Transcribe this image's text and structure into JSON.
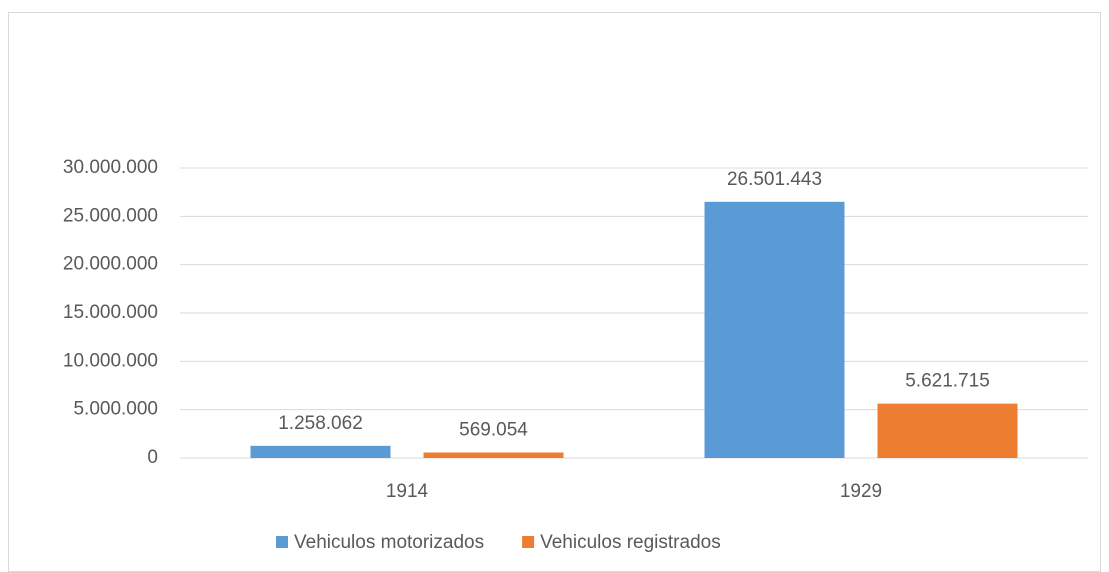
{
  "chart_data": {
    "type": "bar",
    "categories": [
      "1914",
      "1929"
    ],
    "series": [
      {
        "name": "Vehiculos motorizados",
        "color": "#5b9bd5",
        "values": [
          1258062,
          26501443
        ],
        "value_labels": [
          "1.258.062",
          "26.501.443"
        ]
      },
      {
        "name": "Vehiculos registrados",
        "color": "#ed7d31",
        "values": [
          569054,
          5621715
        ],
        "value_labels": [
          "569.054",
          "5.621.715"
        ]
      }
    ],
    "ylim": [
      0,
      30000000
    ],
    "yticks": [
      0,
      {
        "value": 5000000,
        "label": "5.000.000"
      },
      {
        "value": 10000000,
        "label": "10.000.000"
      },
      {
        "value": 15000000,
        "label": "15.000.000"
      },
      {
        "value": 20000000,
        "label": "20.000.000"
      },
      {
        "value": 25000000,
        "label": "25.000.000"
      },
      {
        "value": 30000000,
        "label": "30.000.000"
      }
    ],
    "grid": true,
    "legend": "bottom"
  }
}
